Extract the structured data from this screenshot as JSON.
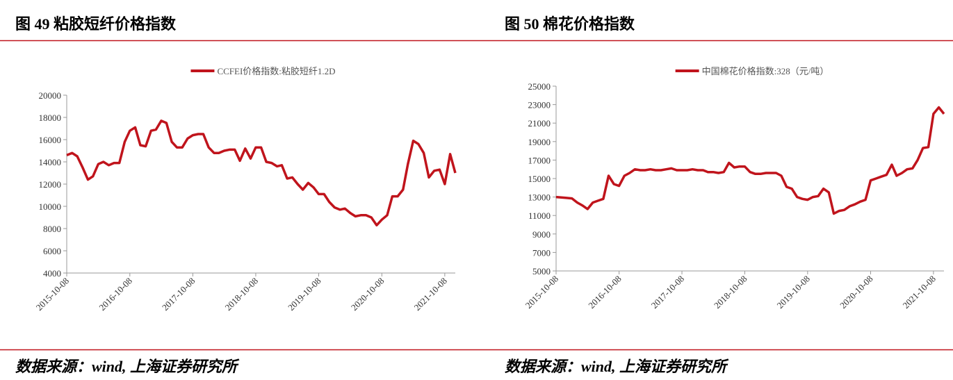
{
  "chart_data": [
    {
      "type": "line",
      "title": "图 49 粘胶短纤价格指数",
      "source": "数据来源：wind, 上海证券研究所",
      "x": [
        "2015-10-08",
        "2015-11-08",
        "2015-12-08",
        "2016-01-08",
        "2016-02-08",
        "2016-03-08",
        "2016-04-08",
        "2016-05-08",
        "2016-06-08",
        "2016-07-08",
        "2016-08-08",
        "2016-09-08",
        "2016-10-08",
        "2016-11-08",
        "2016-12-08",
        "2017-01-08",
        "2017-02-08",
        "2017-03-08",
        "2017-04-08",
        "2017-05-08",
        "2017-06-08",
        "2017-07-08",
        "2017-08-08",
        "2017-09-08",
        "2017-10-08",
        "2017-11-08",
        "2017-12-08",
        "2018-01-08",
        "2018-02-08",
        "2018-03-08",
        "2018-04-08",
        "2018-05-08",
        "2018-06-08",
        "2018-07-08",
        "2018-08-08",
        "2018-09-08",
        "2018-10-08",
        "2018-11-08",
        "2018-12-08",
        "2019-01-08",
        "2019-02-08",
        "2019-03-08",
        "2019-04-08",
        "2019-05-08",
        "2019-06-08",
        "2019-07-08",
        "2019-08-08",
        "2019-09-08",
        "2019-10-08",
        "2019-11-08",
        "2019-12-08",
        "2020-01-08",
        "2020-02-08",
        "2020-03-08",
        "2020-04-08",
        "2020-05-08",
        "2020-06-08",
        "2020-07-08",
        "2020-08-08",
        "2020-09-08",
        "2020-10-08",
        "2020-11-08",
        "2020-12-08",
        "2021-01-08",
        "2021-02-08",
        "2021-03-08",
        "2021-04-08",
        "2021-05-08",
        "2021-06-08",
        "2021-07-08",
        "2021-08-08",
        "2021-09-08",
        "2021-10-08",
        "2021-11-08",
        "2021-12-08"
      ],
      "series": [
        {
          "name": "CCFEI价格指数:粘胶短纤1.2D",
          "color": "#c0141c",
          "values": [
            14600,
            14800,
            14500,
            13500,
            12400,
            12700,
            13800,
            14000,
            13700,
            13900,
            13900,
            15800,
            16800,
            17100,
            15500,
            15400,
            16800,
            16900,
            17700,
            17500,
            15800,
            15300,
            15300,
            16100,
            16400,
            16500,
            16500,
            15300,
            14800,
            14800,
            15000,
            15100,
            15100,
            14100,
            15200,
            14300,
            15300,
            15300,
            14000,
            13900,
            13600,
            13700,
            12500,
            12600,
            12000,
            11500,
            12100,
            11700,
            11100,
            11100,
            10400,
            9900,
            9700,
            9800,
            9400,
            9100,
            9200,
            9200,
            9000,
            8300,
            8800,
            9200,
            10900,
            10900,
            11500,
            13800,
            15900,
            15600,
            14800,
            12600,
            13200,
            13300,
            12000,
            14700,
            13000
          ]
        }
      ],
      "xlim": [
        "2015-10-08",
        "2021-12-08"
      ],
      "xticks": [
        "2015-10-08",
        "2016-10-08",
        "2017-10-08",
        "2018-10-08",
        "2019-10-08",
        "2020-10-08",
        "2021-10-08"
      ],
      "ylim": [
        4000,
        20000
      ],
      "yticks": [
        4000,
        6000,
        8000,
        10000,
        12000,
        14000,
        16000,
        18000,
        20000
      ],
      "legend": "top"
    },
    {
      "type": "line",
      "title": "图 50 棉花价格指数",
      "source": "数据来源：wind, 上海证券研究所",
      "x": [
        "2015-10-08",
        "2015-11-08",
        "2015-12-08",
        "2016-01-08",
        "2016-02-08",
        "2016-03-08",
        "2016-04-08",
        "2016-05-08",
        "2016-06-08",
        "2016-07-08",
        "2016-08-08",
        "2016-09-08",
        "2016-10-08",
        "2016-11-08",
        "2016-12-08",
        "2017-01-08",
        "2017-02-08",
        "2017-03-08",
        "2017-04-08",
        "2017-05-08",
        "2017-06-08",
        "2017-07-08",
        "2017-08-08",
        "2017-09-08",
        "2017-10-08",
        "2017-11-08",
        "2017-12-08",
        "2018-01-08",
        "2018-02-08",
        "2018-03-08",
        "2018-04-08",
        "2018-05-08",
        "2018-06-08",
        "2018-07-08",
        "2018-08-08",
        "2018-09-08",
        "2018-10-08",
        "2018-11-08",
        "2018-12-08",
        "2019-01-08",
        "2019-02-08",
        "2019-03-08",
        "2019-04-08",
        "2019-05-08",
        "2019-06-08",
        "2019-07-08",
        "2019-08-08",
        "2019-09-08",
        "2019-10-08",
        "2019-11-08",
        "2019-12-08",
        "2020-01-08",
        "2020-02-08",
        "2020-03-08",
        "2020-04-08",
        "2020-05-08",
        "2020-06-08",
        "2020-07-08",
        "2020-08-08",
        "2020-09-08",
        "2020-10-08",
        "2020-11-08",
        "2020-12-08",
        "2021-01-08",
        "2021-02-08",
        "2021-03-08",
        "2021-04-08",
        "2021-05-08",
        "2021-06-08",
        "2021-07-08",
        "2021-08-08",
        "2021-09-08",
        "2021-10-08",
        "2021-11-08",
        "2021-12-08"
      ],
      "series": [
        {
          "name": "中国棉花价格指数:328（元/吨）",
          "color": "#c0141c",
          "values": [
            13000,
            12950,
            12900,
            12850,
            12400,
            12100,
            11700,
            12400,
            12600,
            12800,
            15300,
            14400,
            14200,
            15300,
            15600,
            16000,
            15900,
            15900,
            16000,
            15900,
            15900,
            16000,
            16100,
            15900,
            15900,
            15900,
            16000,
            15900,
            15900,
            15700,
            15700,
            15600,
            15700,
            16700,
            16200,
            16300,
            16300,
            15700,
            15500,
            15500,
            15600,
            15600,
            15600,
            15300,
            14100,
            13900,
            13000,
            12800,
            12700,
            13000,
            13100,
            13900,
            13500,
            11200,
            11500,
            11600,
            12000,
            12200,
            12500,
            12700,
            14800,
            15000,
            15200,
            15400,
            16500,
            15300,
            15600,
            16000,
            16100,
            17000,
            18300,
            18400,
            22000,
            22700,
            22000
          ]
        }
      ],
      "xlim": [
        "2015-10-08",
        "2021-12-08"
      ],
      "xticks": [
        "2015-10-08",
        "2016-10-08",
        "2017-10-08",
        "2018-10-08",
        "2019-10-08",
        "2020-10-08",
        "2021-10-08"
      ],
      "ylim": [
        5000,
        25000
      ],
      "yticks": [
        5000,
        7000,
        9000,
        11000,
        13000,
        15000,
        17000,
        19000,
        21000,
        23000,
        25000
      ],
      "legend": "top"
    }
  ]
}
